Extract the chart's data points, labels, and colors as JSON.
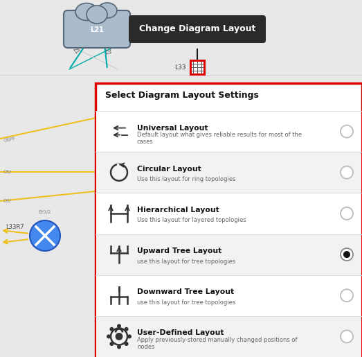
{
  "bg_color": "#e8e8e8",
  "tooltip_text": "Change Diagram Layout",
  "tooltip_bg": "#2a2a2a",
  "tooltip_fg": "#ffffff",
  "panel_title": "Select Diagram Layout Settings",
  "panel_bg": "#ffffff",
  "panel_border": "#dd0000",
  "layouts": [
    {
      "name": "Universal Layout",
      "desc": "Default layout what gives reliable results for most of the\ncases",
      "selected": false,
      "row_bg": "#ffffff"
    },
    {
      "name": "Circular Layout",
      "desc": "Use this layout for ring topologies",
      "selected": false,
      "row_bg": "#f2f2f2"
    },
    {
      "name": "Hierarchical Layout",
      "desc": "Use this layout for layered topologies",
      "selected": false,
      "row_bg": "#ffffff"
    },
    {
      "name": "Upward Tree Layout",
      "desc": "use this layout for tree topologies",
      "selected": true,
      "row_bg": "#f2f2f2"
    },
    {
      "name": "Downward Tree Layout",
      "desc": "use this layout for tree topologies",
      "selected": false,
      "row_bg": "#ffffff"
    },
    {
      "name": "User-Defined Layout",
      "desc": "Apply previously-stored manually changed positions of\nnodes",
      "selected": false,
      "row_bg": "#f2f2f2"
    }
  ]
}
